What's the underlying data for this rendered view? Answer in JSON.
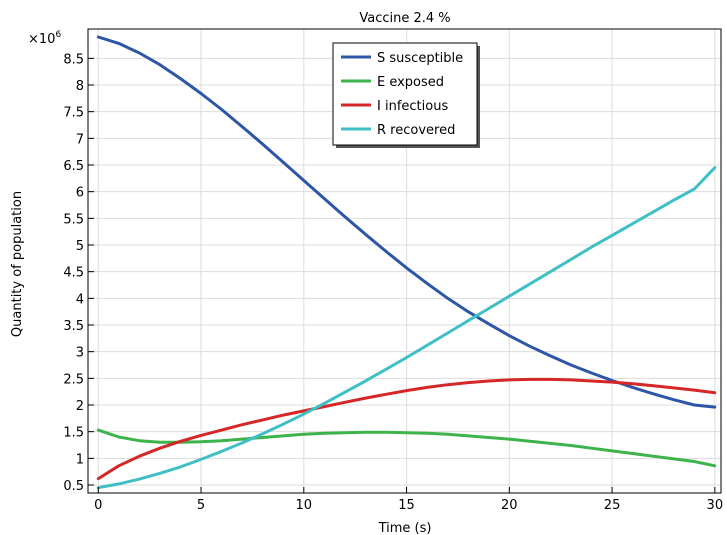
{
  "chart_data": {
    "type": "line",
    "title": "Vaccine 2.4 %",
    "xlabel": "Time (s)",
    "ylabel": "Quantity of  population",
    "y_multiplier_label": "×10",
    "y_multiplier_exp": "6",
    "xlim": [
      -0.5,
      30.3
    ],
    "ylim": [
      0.35,
      9.05
    ],
    "grid": true,
    "legend_position": "top-center",
    "x_ticks": [
      0,
      5,
      10,
      15,
      20,
      25,
      30
    ],
    "y_ticks": [
      0.5,
      1,
      1.5,
      2,
      2.5,
      3,
      3.5,
      4,
      4.5,
      5,
      5.5,
      6,
      6.5,
      7,
      7.5,
      8,
      8.5
    ],
    "series": [
      {
        "name": "S susceptible",
        "color": "#2e56a6",
        "x": [
          0,
          1,
          2,
          3,
          4,
          5,
          6,
          7,
          8,
          9,
          10,
          11,
          12,
          13,
          14,
          15,
          16,
          17,
          18,
          19,
          20,
          21,
          22,
          23,
          24,
          25,
          26,
          27,
          28,
          29,
          30
        ],
        "y": [
          8.9,
          8.78,
          8.6,
          8.38,
          8.12,
          7.84,
          7.54,
          7.22,
          6.89,
          6.55,
          6.21,
          5.87,
          5.53,
          5.2,
          4.88,
          4.57,
          4.28,
          4.0,
          3.75,
          3.52,
          3.3,
          3.1,
          2.92,
          2.75,
          2.6,
          2.46,
          2.33,
          2.21,
          2.1,
          2.0,
          1.96
        ]
      },
      {
        "name": "E exposed",
        "color": "#3cb44b",
        "x": [
          0,
          1,
          2,
          3,
          4,
          5,
          6,
          7,
          8,
          9,
          10,
          11,
          12,
          13,
          14,
          15,
          16,
          17,
          18,
          19,
          20,
          21,
          22,
          23,
          24,
          25,
          26,
          27,
          28,
          29,
          30
        ],
        "y": [
          1.53,
          1.4,
          1.33,
          1.3,
          1.3,
          1.31,
          1.33,
          1.36,
          1.39,
          1.42,
          1.45,
          1.47,
          1.48,
          1.49,
          1.49,
          1.48,
          1.47,
          1.45,
          1.42,
          1.39,
          1.36,
          1.32,
          1.28,
          1.24,
          1.19,
          1.14,
          1.09,
          1.04,
          0.99,
          0.94,
          0.86
        ]
      },
      {
        "name": "I infectious",
        "color": "#d62728",
        "x": [
          0,
          1,
          2,
          3,
          4,
          5,
          6,
          7,
          8,
          9,
          10,
          11,
          12,
          13,
          14,
          15,
          16,
          17,
          18,
          19,
          20,
          21,
          22,
          23,
          24,
          25,
          26,
          27,
          28,
          29,
          30
        ],
        "y": [
          0.62,
          0.86,
          1.04,
          1.19,
          1.32,
          1.43,
          1.53,
          1.63,
          1.72,
          1.81,
          1.89,
          1.97,
          2.05,
          2.13,
          2.2,
          2.27,
          2.33,
          2.38,
          2.42,
          2.45,
          2.47,
          2.48,
          2.48,
          2.47,
          2.45,
          2.43,
          2.4,
          2.36,
          2.32,
          2.28,
          2.23
        ]
      },
      {
        "name": "R recovered",
        "color": "#3fbfc4",
        "x": [
          0,
          1,
          2,
          3,
          4,
          5,
          6,
          7,
          8,
          9,
          10,
          11,
          12,
          13,
          14,
          15,
          16,
          17,
          18,
          19,
          20,
          21,
          22,
          23,
          24,
          25,
          26,
          27,
          28,
          29,
          30
        ],
        "y": [
          0.45,
          0.52,
          0.61,
          0.72,
          0.84,
          0.98,
          1.13,
          1.29,
          1.46,
          1.64,
          1.83,
          2.03,
          2.24,
          2.45,
          2.67,
          2.89,
          3.12,
          3.35,
          3.58,
          3.81,
          4.04,
          4.27,
          4.5,
          4.73,
          4.96,
          5.18,
          5.4,
          5.62,
          5.84,
          6.05,
          6.45
        ]
      }
    ]
  }
}
